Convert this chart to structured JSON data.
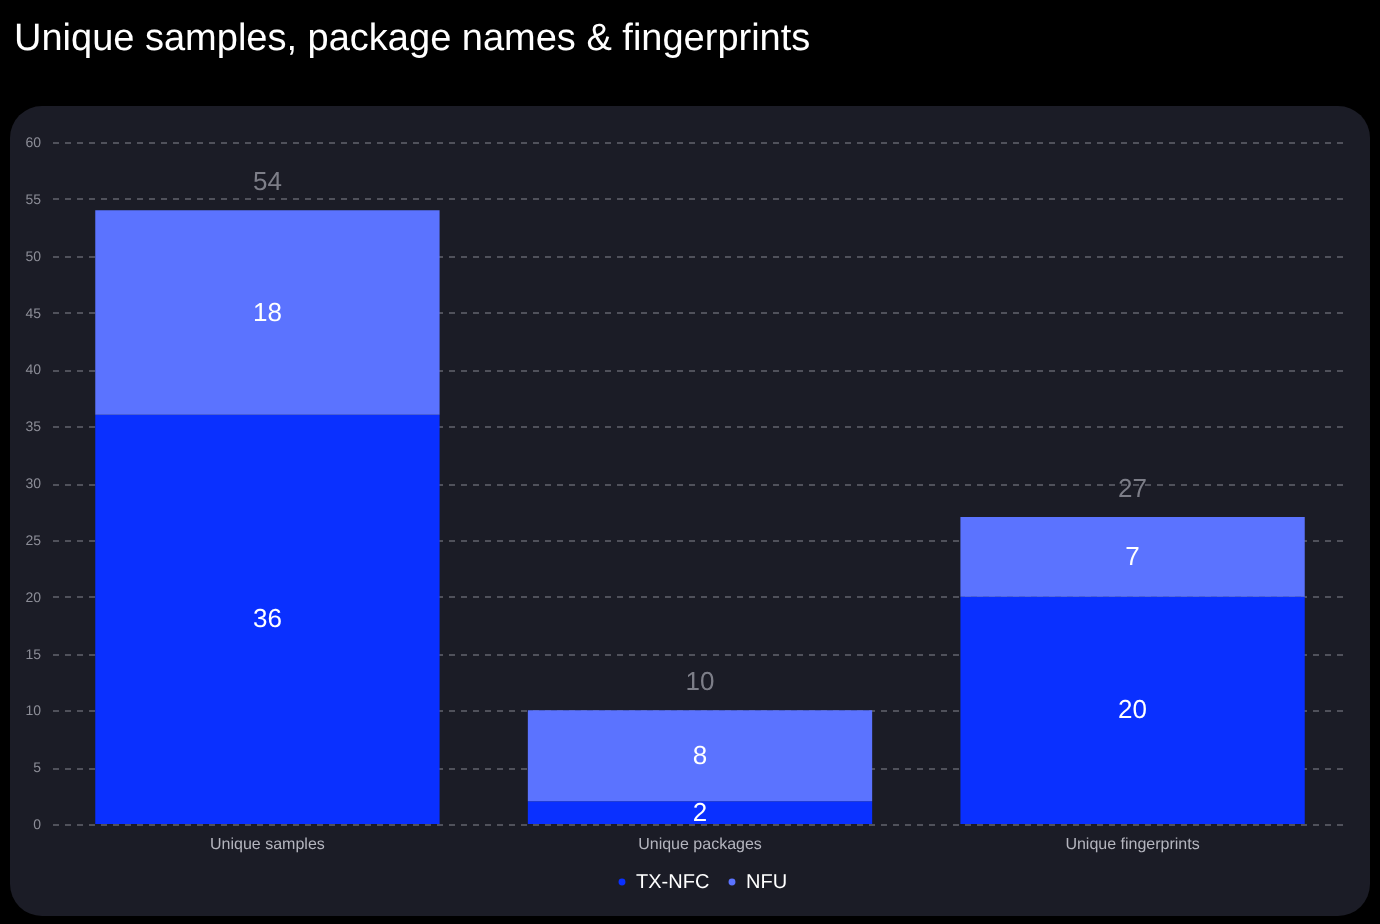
{
  "chart_data": {
    "type": "bar",
    "title": "Unique samples, package names & fingerprints",
    "categories": [
      "Unique samples",
      "Unique packages",
      "Unique fingerprints"
    ],
    "series": [
      {
        "name": "TX-NFC",
        "color": "#0a30ff",
        "values": [
          36,
          2,
          20
        ]
      },
      {
        "name": "NFU",
        "color": "#5b73ff",
        "values": [
          18,
          8,
          7
        ]
      }
    ],
    "stacked": true,
    "data_labels": true,
    "totals": [
      "54",
      "10",
      "27"
    ],
    "ylim": [
      0,
      60
    ],
    "yticks": [
      0,
      5,
      10,
      15,
      20,
      25,
      30,
      35,
      40,
      45,
      50,
      55,
      60
    ],
    "grid": "y",
    "legend": "bottom"
  }
}
